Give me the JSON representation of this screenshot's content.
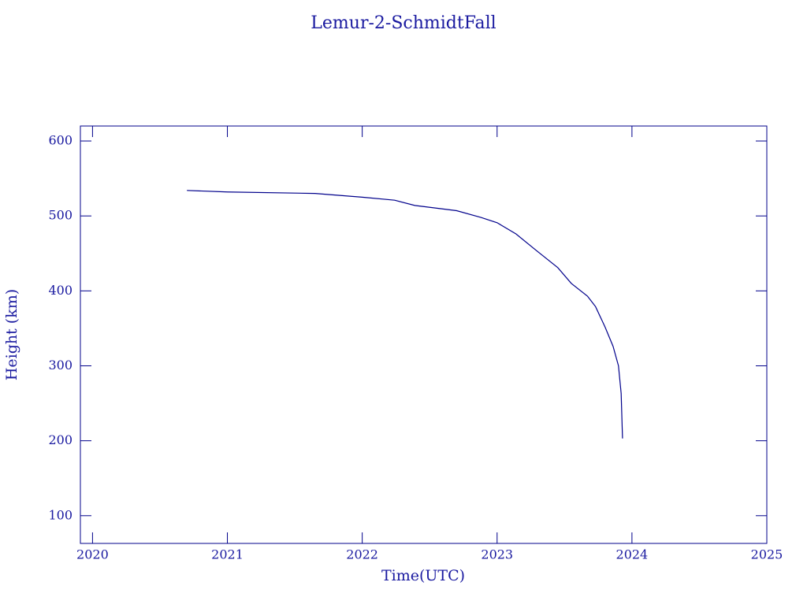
{
  "chart_data": {
    "type": "line",
    "title": "Lemur-2-SchmidtFall",
    "x_label": "Time(UTC)",
    "y_label": "Height (km)",
    "x": [
      2020.7,
      2021.0,
      2021.65,
      2022.0,
      2022.24,
      2022.39,
      2022.7,
      2022.88,
      2023.0,
      2023.14,
      2023.29,
      2023.45,
      2023.55,
      2023.67,
      2023.73,
      2023.8,
      2023.86,
      2023.9,
      2023.92,
      2023.93
    ],
    "series": [
      {
        "name": "Lemur-2-SchmidtFall",
        "color": "#00008b",
        "values": [
          534,
          532,
          530,
          525,
          521,
          514,
          507,
          498,
          491,
          476,
          454,
          431,
          410,
          393,
          379,
          352,
          326,
          300,
          263,
          203
        ]
      }
    ],
    "xlim": [
      2019.91,
      2025
    ],
    "xticks": [
      2020,
      2021,
      2022,
      2023,
      2024,
      2025
    ],
    "ylim": [
      63,
      620
    ],
    "yticks": [
      100,
      200,
      300,
      400,
      500,
      600
    ],
    "grid": false
  }
}
